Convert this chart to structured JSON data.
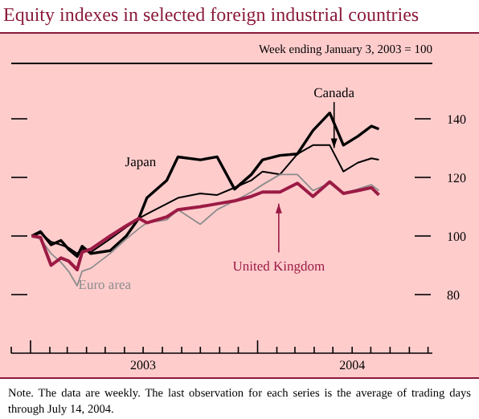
{
  "chart_data": {
    "type": "line",
    "title": "Equity indexes in selected foreign industrial countries",
    "subtitle": "Week ending January 3, 2003 = 100",
    "x": [
      "2003-01-03",
      "2003-01-17",
      "2003-02-03",
      "2003-02-19",
      "2003-03-03",
      "2003-03-17",
      "2003-03-25",
      "2003-04-08",
      "2003-05-09",
      "2003-06-04",
      "2003-06-24",
      "2003-07-07",
      "2003-08-08",
      "2003-08-26",
      "2003-10-01",
      "2003-10-28",
      "2003-11-25",
      "2003-12-22",
      "2004-01-09",
      "2004-02-06",
      "2004-03-05",
      "2004-03-30",
      "2004-04-26",
      "2004-05-18",
      "2004-06-10",
      "2004-07-02",
      "2004-07-14"
    ],
    "series": [
      {
        "name": "Canada",
        "color": "#000000",
        "values": [
          100,
          101,
          98,
          97,
          96,
          94,
          95.5,
          94.5,
          99,
          103,
          106,
          107.5,
          111,
          113,
          114.5,
          114,
          116.5,
          119,
          122,
          121,
          128,
          131,
          131,
          122,
          125,
          126.5,
          126
        ]
      },
      {
        "name": "Japan",
        "color": "#000000",
        "values": [
          100,
          101.5,
          97,
          98.5,
          95.5,
          93,
          96.5,
          94,
          95,
          100,
          106,
          113,
          119,
          127,
          126,
          127,
          116,
          121,
          126,
          127.5,
          128,
          136,
          142,
          131,
          134,
          137.5,
          136.5
        ]
      },
      {
        "name": "Euro area",
        "color": "#8c8c8c",
        "values": [
          100,
          99,
          94,
          91,
          88,
          83,
          88,
          89,
          94,
          99,
          102.5,
          104.5,
          105.5,
          109,
          104,
          109,
          112,
          115,
          117.5,
          121,
          121,
          115.5,
          118,
          114.5,
          116,
          117.5,
          115.5
        ]
      },
      {
        "name": "United Kingdom",
        "color": "#9b1b45",
        "values": [
          100,
          99.5,
          90,
          92.5,
          91.5,
          88.5,
          94.5,
          95.5,
          100,
          103.5,
          106,
          104.5,
          106.5,
          109,
          110,
          111,
          112,
          113.5,
          115,
          115,
          118,
          113.5,
          118.5,
          114.5,
          115.5,
          116.5,
          114
        ]
      }
    ],
    "xlim": [
      "2002-12-01",
      "2004-10-08"
    ],
    "xticks": [
      {
        "value": "2002-12-01",
        "label": null
      },
      {
        "value": "2003-01-01",
        "label": null
      },
      {
        "value": "2003-02-01",
        "label": null
      },
      {
        "value": "2003-03-01",
        "label": null
      },
      {
        "value": "2003-04-01",
        "label": null
      },
      {
        "value": "2003-05-01",
        "label": null
      },
      {
        "value": "2003-06-01",
        "label": null
      },
      {
        "value": "2003-07-01",
        "label": "2003"
      },
      {
        "value": "2003-08-01",
        "label": null
      },
      {
        "value": "2003-09-01",
        "label": null
      },
      {
        "value": "2003-10-01",
        "label": null
      },
      {
        "value": "2003-11-01",
        "label": null
      },
      {
        "value": "2003-12-01",
        "label": null
      },
      {
        "value": "2004-01-01",
        "label": null
      },
      {
        "value": "2004-02-01",
        "label": null
      },
      {
        "value": "2004-03-01",
        "label": null
      },
      {
        "value": "2004-04-01",
        "label": null
      },
      {
        "value": "2004-05-01",
        "label": null
      },
      {
        "value": "2004-06-01",
        "label": "2004"
      },
      {
        "value": "2004-07-01",
        "label": null
      },
      {
        "value": "2004-08-01",
        "label": null
      },
      {
        "value": "2004-09-01",
        "label": null
      },
      {
        "value": "2004-10-01",
        "label": null
      }
    ],
    "ylim": [
      60,
      160
    ],
    "yticks": [
      80,
      100,
      120,
      140
    ],
    "annotations": [
      "Note. The data are weekly. The last observation for each series is the average of trading days through July 14, 2004."
    ]
  }
}
